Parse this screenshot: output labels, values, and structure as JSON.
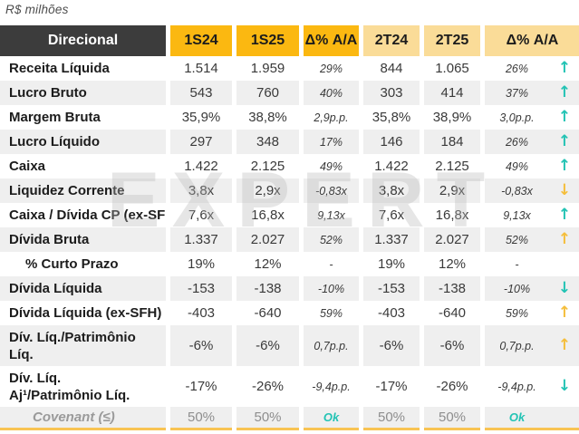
{
  "page": {
    "unit_label": "R$ milhões",
    "watermark": "EXPERT"
  },
  "theme": {
    "brand_amber": "#FBB811",
    "pale_amber": "#FADC98",
    "header_dark": "#3C3C3C",
    "stripe_gray": "#EFEFEF",
    "teal": "#23C3B4",
    "arrow_yellow": "#F5BE3B",
    "bottom_border": "#F8C453",
    "covenant_gray": "#8E8E8E"
  },
  "table": {
    "header": {
      "label": "Direcional",
      "cols": [
        "1S24",
        "1S25",
        "Δ% A/A",
        "2T24",
        "2T25",
        "Δ% A/A"
      ]
    },
    "rows": [
      {
        "label": "Receita Líquida",
        "label_style": "normal",
        "s24": "1.514",
        "s25": "1.959",
        "d1": "29%",
        "q24": "844",
        "q25": "1.065",
        "d2": "26%",
        "arrow": "up",
        "arrow_color": "teal"
      },
      {
        "label": "Lucro Bruto",
        "label_style": "normal",
        "s24": "543",
        "s25": "760",
        "d1": "40%",
        "q24": "303",
        "q25": "414",
        "d2": "37%",
        "arrow": "up",
        "arrow_color": "teal"
      },
      {
        "label": "Margem Bruta",
        "label_style": "normal",
        "s24": "35,9%",
        "s25": "38,8%",
        "d1": "2,9p.p.",
        "q24": "35,8%",
        "q25": "38,9%",
        "d2": "3,0p.p.",
        "arrow": "up",
        "arrow_color": "teal"
      },
      {
        "label": "Lucro Líquido",
        "label_style": "normal",
        "s24": "297",
        "s25": "348",
        "d1": "17%",
        "q24": "146",
        "q25": "184",
        "d2": "26%",
        "arrow": "up",
        "arrow_color": "teal"
      },
      {
        "label": "Caixa",
        "label_style": "normal",
        "s24": "1.422",
        "s25": "2.125",
        "d1": "49%",
        "q24": "1.422",
        "q25": "2.125",
        "d2": "49%",
        "arrow": "up",
        "arrow_color": "teal"
      },
      {
        "label": "Liquidez Corrente",
        "label_style": "normal",
        "s24": "3,8x",
        "s25": "2,9x",
        "d1": "-0,83x",
        "q24": "3,8x",
        "q25": "2,9x",
        "d2": "-0,83x",
        "arrow": "down",
        "arrow_color": "yellow"
      },
      {
        "label": "Caixa / Dívida CP (ex-SFH)",
        "label_style": "clip",
        "s24": "7,6x",
        "s25": "16,8x",
        "d1": "9,13x",
        "q24": "7,6x",
        "q25": "16,8x",
        "d2": "9,13x",
        "arrow": "up",
        "arrow_color": "teal"
      },
      {
        "label": "Dívida Bruta",
        "label_style": "normal",
        "s24": "1.337",
        "s25": "2.027",
        "d1": "52%",
        "q24": "1.337",
        "q25": "2.027",
        "d2": "52%",
        "arrow": "up",
        "arrow_color": "yellow"
      },
      {
        "label": "% Curto Prazo",
        "label_style": "indent",
        "s24": "19%",
        "s25": "12%",
        "d1": "-",
        "q24": "19%",
        "q25": "12%",
        "d2": "-",
        "arrow": "",
        "arrow_color": ""
      },
      {
        "label": "Dívida Líquida",
        "label_style": "normal",
        "s24": "-153",
        "s25": "-138",
        "d1": "-10%",
        "q24": "-153",
        "q25": "-138",
        "d2": "-10%",
        "arrow": "down",
        "arrow_color": "teal"
      },
      {
        "label": "Dívida Líquida (ex-SFH)",
        "label_style": "clip",
        "s24": "-403",
        "s25": "-640",
        "d1": "59%",
        "q24": "-403",
        "q25": "-640",
        "d2": "59%",
        "arrow": "up",
        "arrow_color": "yellow"
      },
      {
        "label": "Dív. Líq./Patrimônio\nLíq.",
        "label_style": "wrap",
        "s24": "-6%",
        "s25": "-6%",
        "d1": "0,7p.p.",
        "q24": "-6%",
        "q25": "-6%",
        "d2": "0,7p.p.",
        "arrow": "up",
        "arrow_color": "yellow"
      },
      {
        "label": "Dív. Líq.\nAj¹/Patrimônio Líq.",
        "label_style": "wrap",
        "s24": "-17%",
        "s25": "-26%",
        "d1": "-9,4p.p.",
        "q24": "-17%",
        "q25": "-26%",
        "d2": "-9,4p.p.",
        "arrow": "down",
        "arrow_color": "teal"
      },
      {
        "label": "Covenant (≤)",
        "label_style": "covenant",
        "s24": "50%",
        "s25": "50%",
        "d1": "Ok",
        "q24": "50%",
        "q25": "50%",
        "d2": "Ok",
        "arrow": "",
        "arrow_color": ""
      }
    ]
  }
}
